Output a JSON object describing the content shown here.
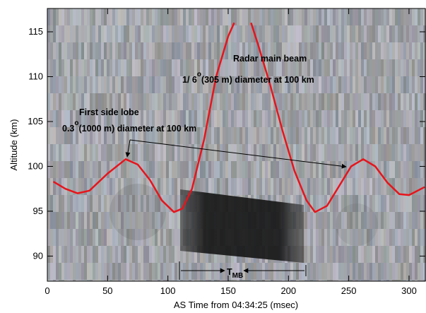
{
  "chart_data": {
    "type": "line",
    "x_label": "AS Time from 04:34:25 (msec)",
    "y_label": "Altitude (km)",
    "xlim": [
      0,
      313.5
    ],
    "ylim": [
      87.2,
      117.6
    ],
    "xticks": [
      0,
      50,
      100,
      150,
      200,
      250,
      300
    ],
    "yticks": [
      90,
      95,
      100,
      105,
      110,
      115
    ],
    "grid": false,
    "series": [
      {
        "color": "#e8141b",
        "x": [
          5,
          15,
          25,
          35,
          50,
          65,
          75,
          85,
          95,
          105,
          112,
          120,
          130,
          140,
          150,
          155,
          162,
          169,
          175,
          185,
          195,
          205,
          215,
          222,
          232,
          242,
          252,
          262,
          272,
          282,
          292,
          300,
          313
        ],
        "values": [
          98.3,
          97.5,
          97.0,
          97.3,
          99.2,
          100.8,
          100.2,
          98.5,
          96.2,
          94.9,
          95.3,
          97.5,
          103,
          110,
          114.5,
          116,
          null,
          116,
          113.5,
          109,
          104,
          99.5,
          96.2,
          94.9,
          95.6,
          97.8,
          100,
          100.8,
          100,
          98.2,
          96.9,
          96.8,
          97.7
        ]
      }
    ],
    "annotations": {
      "main_beam": [
        "Radar main beam",
        "1/ 6",
        "o",
        "(305 m) diameter at 100 km"
      ],
      "side_lobe": [
        "First side lobe",
        "0.3",
        "o",
        "(1000 m) diameter at 100 km"
      ],
      "tmb": [
        "T",
        "MB"
      ]
    }
  }
}
